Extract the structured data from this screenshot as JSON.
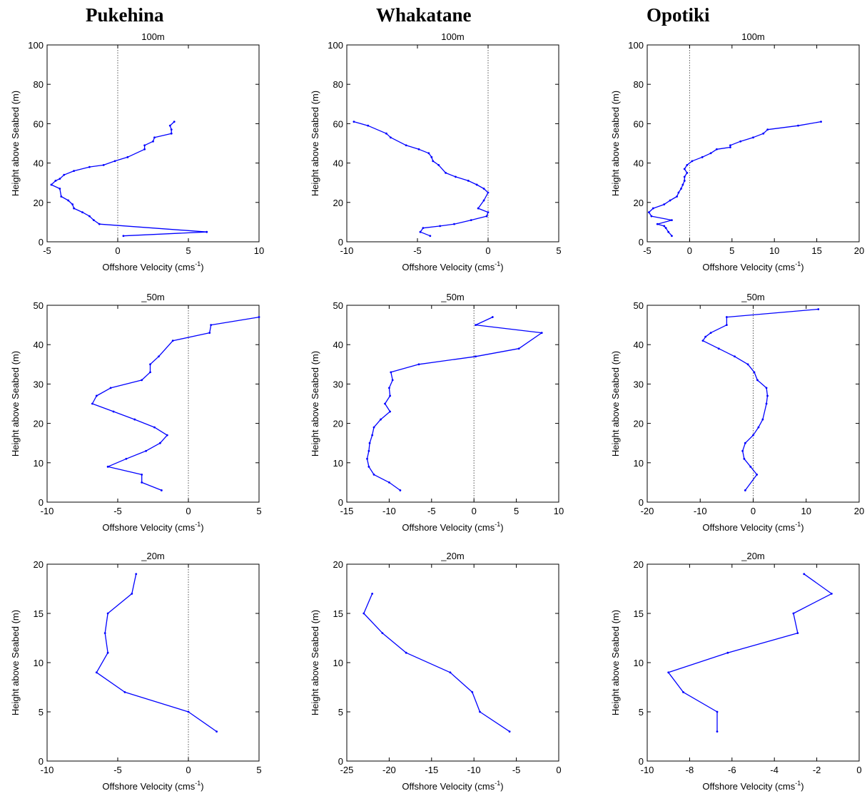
{
  "column_titles": [
    "Pukehina",
    "Whakatane",
    "Opotiki"
  ],
  "colors": {
    "series": "#0000ff",
    "axes": "#000000",
    "zero_line": "#555555"
  },
  "chart_data": [
    {
      "type": "line",
      "site": "Pukehina",
      "title": "100m",
      "xlabel": "Offshore Velocity (cms",
      "xlabel_sup": "-1",
      "xlabel_suffix": ")",
      "ylabel": "Height above Seabed (m)",
      "xlim": [
        -5,
        10
      ],
      "ylim": [
        0,
        100
      ],
      "xticks": [
        -5,
        0,
        5,
        10
      ],
      "yticks": [
        0,
        20,
        40,
        60,
        80,
        100
      ],
      "zero_line": true,
      "x": [
        4.0,
        3.7,
        3.8,
        3.8,
        2.6,
        2.5,
        1.9,
        1.9,
        0.7,
        -0.2,
        -1.0,
        -2.0,
        -3.1,
        -3.8,
        -4.1,
        -4.4,
        -4.7,
        -4.1,
        -4.0,
        -3.5,
        -3.2,
        -3.1,
        -2.5,
        -2.0,
        -1.7,
        -1.3,
        6.3,
        0.4
      ],
      "y": [
        61,
        59,
        57,
        55,
        53,
        51,
        49,
        47,
        43,
        41,
        39,
        38,
        36,
        34,
        32,
        31,
        29,
        27,
        23,
        21,
        19,
        17,
        15,
        13,
        11,
        9,
        5,
        3
      ]
    },
    {
      "type": "line",
      "site": "Whakatane",
      "title": "100m",
      "xlabel": "Offshore Velocity (cms",
      "xlabel_sup": "-1",
      "xlabel_suffix": ")",
      "ylabel": "Height above Seabed (m)",
      "xlim": [
        -10,
        5
      ],
      "ylim": [
        0,
        100
      ],
      "xticks": [
        -10,
        -5,
        0,
        5
      ],
      "yticks": [
        0,
        20,
        40,
        60,
        80,
        100
      ],
      "zero_line": true,
      "x": [
        -9.5,
        -8.5,
        -7.2,
        -6.9,
        -5.8,
        -4.9,
        -4.2,
        -4.0,
        -3.9,
        -3.5,
        -3.0,
        -2.3,
        -1.4,
        -0.8,
        -0.3,
        0.0,
        -0.3,
        -0.7,
        0.0,
        -0.1,
        -1.2,
        -2.4,
        -3.4,
        -4.6,
        -4.8,
        -4.1
      ],
      "y": [
        61,
        59,
        55,
        53,
        49,
        47,
        45,
        43,
        41,
        39,
        35,
        33,
        31,
        29,
        27,
        25,
        21,
        17,
        15,
        13,
        11,
        9,
        8,
        7,
        5,
        3
      ]
    },
    {
      "type": "line",
      "site": "Opotiki",
      "title": "100m",
      "xlabel": "Offshore Velocity (cms",
      "xlabel_sup": "-1",
      "xlabel_suffix": ")",
      "ylabel": "Height above Seabed (m)",
      "xlim": [
        -5,
        20
      ],
      "ylim": [
        0,
        100
      ],
      "xticks": [
        -5,
        0,
        5,
        10,
        15,
        20
      ],
      "yticks": [
        0,
        20,
        40,
        60,
        80,
        100
      ],
      "zero_line": true,
      "x": [
        15.5,
        12.8,
        9.2,
        8.7,
        7.5,
        6.0,
        4.8,
        4.8,
        3.2,
        2.5,
        1.5,
        0.3,
        -0.3,
        -0.6,
        -0.3,
        -0.6,
        -0.6,
        -0.8,
        -1.0,
        -1.3,
        -1.5,
        -2.3,
        -3.0,
        -4.3,
        -4.8,
        -4.5,
        -2.1,
        -3.8,
        -3.0,
        -2.8,
        -2.5,
        -2.1
      ],
      "y": [
        61,
        59,
        57,
        55,
        53,
        51,
        49,
        48,
        47,
        45,
        43,
        41,
        39,
        37,
        35,
        33,
        31,
        29,
        27,
        25,
        23,
        21,
        19,
        17,
        15,
        13,
        11,
        9,
        8,
        7,
        5,
        3
      ]
    },
    {
      "type": "line",
      "site": "Pukehina",
      "title": "_50m",
      "xlabel": "Offshore Velocity (cms",
      "xlabel_sup": "-1",
      "xlabel_suffix": ")",
      "ylabel": "Height above Seabed (m)",
      "xlim": [
        -10,
        5
      ],
      "ylim": [
        0,
        50
      ],
      "xticks": [
        -10,
        -5,
        0,
        5
      ],
      "yticks": [
        0,
        10,
        20,
        30,
        40,
        50
      ],
      "zero_line": true,
      "x": [
        5.0,
        1.6,
        1.5,
        -1.1,
        -2.1,
        -2.7,
        -2.7,
        -3.3,
        -5.5,
        -6.5,
        -6.8,
        -5.3,
        -3.8,
        -2.4,
        -1.5,
        -2.0,
        -3.0,
        -4.4,
        -5.7,
        -3.3,
        -3.3,
        -1.9
      ],
      "y": [
        47,
        45,
        43,
        41,
        37,
        35,
        33,
        31,
        29,
        27,
        25,
        23,
        21,
        19,
        17,
        15,
        13,
        11,
        9,
        7,
        5,
        3
      ]
    },
    {
      "type": "line",
      "site": "Whakatane",
      "title": "_50m",
      "xlabel": "Offshore Velocity (cms",
      "xlabel_sup": "-1",
      "xlabel_suffix": ")",
      "ylabel": "Height above Seabed (m)",
      "xlim": [
        -15,
        10
      ],
      "ylim": [
        0,
        50
      ],
      "xticks": [
        -15,
        -10,
        -5,
        0,
        5,
        10
      ],
      "yticks": [
        0,
        10,
        20,
        30,
        40,
        50
      ],
      "zero_line": true,
      "x": [
        2.2,
        0.2,
        8.0,
        5.3,
        0.2,
        -6.5,
        -9.8,
        -9.6,
        -10.0,
        -9.9,
        -10.5,
        -9.9,
        -11.0,
        -11.8,
        -12.0,
        -12.3,
        -12.4,
        -12.6,
        -12.4,
        -11.8,
        -10.0,
        -8.7
      ],
      "y": [
        47,
        45,
        43,
        39,
        37,
        35,
        33,
        31,
        29,
        27,
        25,
        23,
        21,
        19,
        17,
        15,
        13,
        11,
        9,
        7,
        5,
        3
      ]
    },
    {
      "type": "line",
      "site": "Opotiki",
      "title": "_50m",
      "xlabel": "Offshore Velocity (cms",
      "xlabel_sup": "-1",
      "xlabel_suffix": ")",
      "ylabel": "Height above Seabed (m)",
      "xlim": [
        -20,
        20
      ],
      "ylim": [
        0,
        50
      ],
      "xticks": [
        -20,
        -10,
        0,
        10,
        20
      ],
      "yticks": [
        0,
        10,
        20,
        30,
        40,
        50
      ],
      "zero_line": true,
      "x": [
        12.3,
        -5.0,
        -5.0,
        -8.0,
        -9.0,
        -9.5,
        -6.5,
        -3.5,
        -1.0,
        0.2,
        0.8,
        2.5,
        2.7,
        2.5,
        1.8,
        1.0,
        0.0,
        -1.5,
        -2.0,
        -1.7,
        -0.5,
        0.7,
        -1.5
      ],
      "y": [
        49,
        47,
        45,
        43,
        42,
        41,
        39,
        37,
        35,
        33,
        31,
        29,
        27,
        25,
        21,
        19,
        17,
        15,
        13,
        11,
        9,
        7,
        3
      ]
    },
    {
      "type": "line",
      "site": "Pukehina",
      "title": "_20m",
      "xlabel": "Offshore Velocity (cms",
      "xlabel_sup": "-1",
      "xlabel_suffix": ")",
      "ylabel": "Height above Seabed (m)",
      "xlim": [
        -10,
        5
      ],
      "ylim": [
        0,
        20
      ],
      "xticks": [
        -10,
        -5,
        0,
        5
      ],
      "yticks": [
        0,
        5,
        10,
        15,
        20
      ],
      "zero_line": true,
      "x": [
        -3.7,
        -4.0,
        -5.7,
        -5.9,
        -5.7,
        -6.5,
        -4.5,
        0.0,
        2.0
      ],
      "y": [
        19,
        17,
        15,
        13,
        11,
        9,
        7,
        5,
        3
      ]
    },
    {
      "type": "line",
      "site": "Whakatane",
      "title": "_20m",
      "xlabel": "Offshore Velocity (cms",
      "xlabel_sup": "-1",
      "xlabel_suffix": ")",
      "ylabel": "Height above Seabed (m)",
      "xlim": [
        -25,
        0
      ],
      "ylim": [
        0,
        20
      ],
      "xticks": [
        -25,
        -20,
        -15,
        -10,
        -5,
        0
      ],
      "yticks": [
        0,
        5,
        10,
        15,
        20
      ],
      "zero_line": false,
      "x": [
        -22.0,
        -23.0,
        -20.8,
        -18.0,
        -12.8,
        -10.2,
        -9.3,
        -5.8
      ],
      "y": [
        17,
        15,
        13,
        11,
        9,
        7,
        5,
        3
      ]
    },
    {
      "type": "line",
      "site": "Opotiki",
      "title": "_20m",
      "xlabel": "Offshore Velocity (cms",
      "xlabel_sup": "-1",
      "xlabel_suffix": ")",
      "ylabel": "Height above Seabed (m)",
      "xlim": [
        -10,
        0
      ],
      "ylim": [
        0,
        20
      ],
      "xticks": [
        -10,
        -8,
        -6,
        -4,
        -2,
        0
      ],
      "yticks": [
        0,
        5,
        10,
        15,
        20
      ],
      "zero_line": false,
      "x": [
        -2.6,
        -1.3,
        -3.1,
        -2.9,
        -6.2,
        -9.0,
        -8.3,
        -6.7,
        -6.7
      ],
      "y": [
        19,
        17,
        15,
        13,
        11,
        9,
        7,
        5,
        3
      ]
    }
  ]
}
